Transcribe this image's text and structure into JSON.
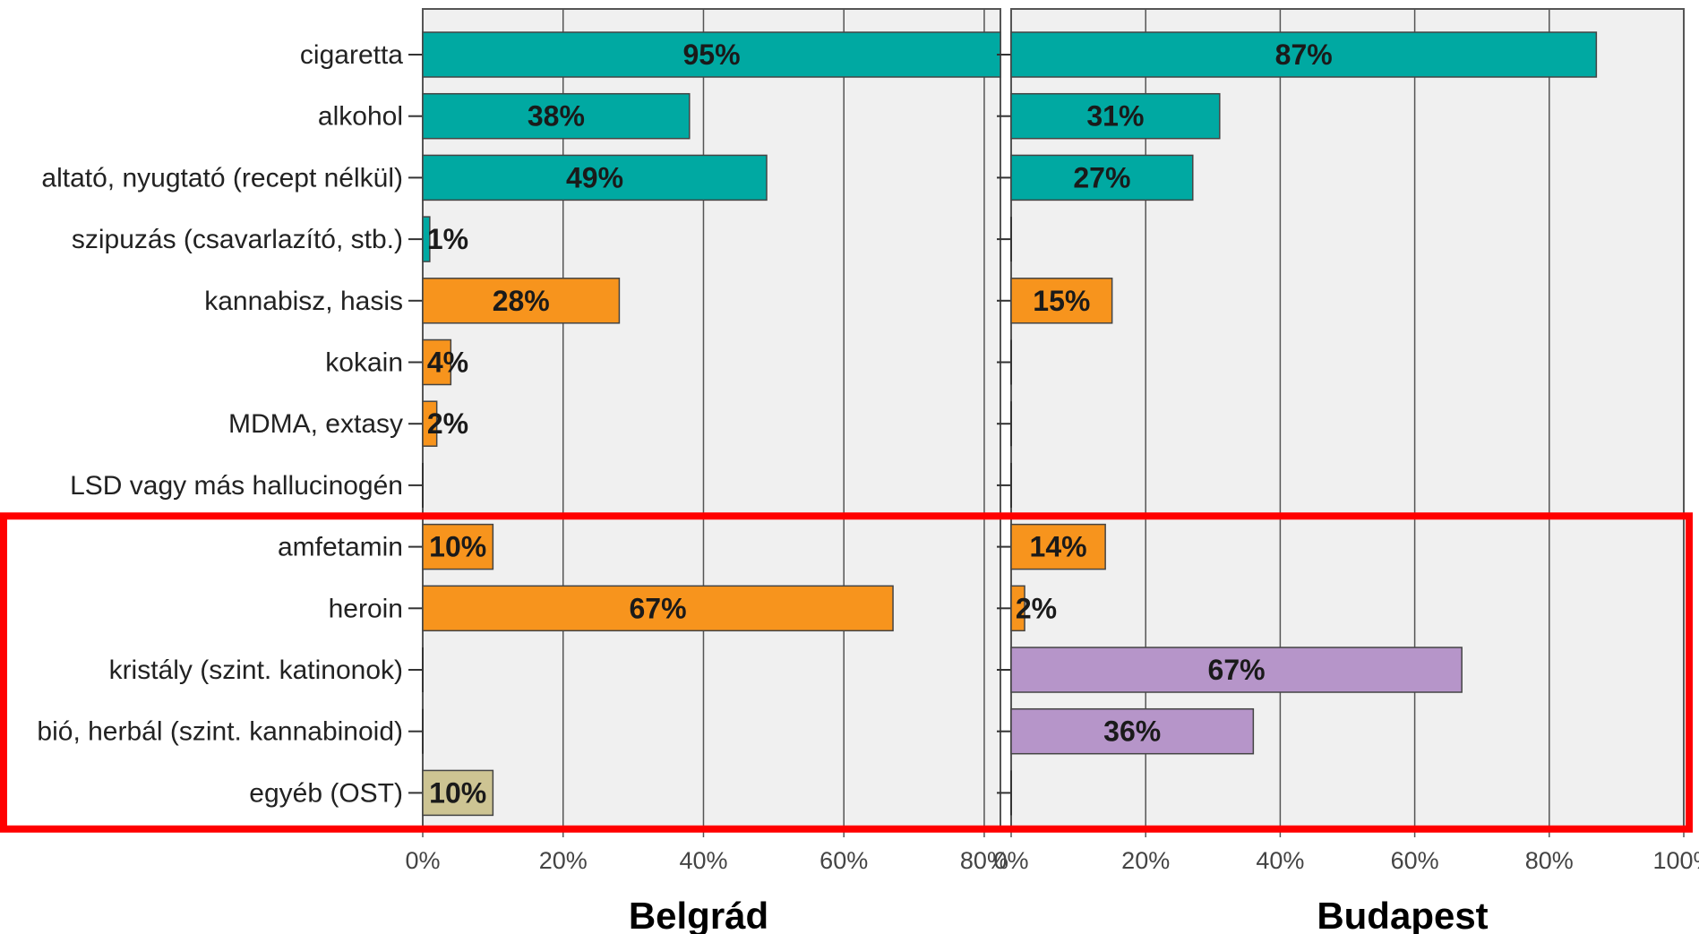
{
  "chart_data": {
    "type": "bar",
    "orientation": "horizontal",
    "categories": [
      "cigaretta",
      "alkohol",
      "altató, nyugtató (recept nélkül)",
      "szipuzás (csavarlazító, stb.)",
      "kannabisz, hasis",
      "kokain",
      "MDMA, extasy",
      "LSD vagy más hallucinogén",
      "amfetamin",
      "heroin",
      "kristály (szint. katinonok)",
      "bió, herbál (szint. kannabinoid)",
      "egyéb (OST)"
    ],
    "category_colors": [
      "#00a9a2",
      "#00a9a2",
      "#00a9a2",
      "#00a9a2",
      "#f7941d",
      "#f7941d",
      "#f7941d",
      "#f7941d",
      "#f7941d",
      "#f7941d",
      "#b695c9",
      "#b695c9",
      "#cdc493"
    ],
    "xlim": [
      0,
      100
    ],
    "x_ticks": [
      "0%",
      "20%",
      "40%",
      "60%",
      "80%",
      "100%"
    ],
    "grid": true,
    "panels": [
      {
        "title": "Belgrád",
        "values": [
          95,
          38,
          49,
          1,
          28,
          4,
          2,
          0,
          10,
          67,
          0,
          0,
          10
        ],
        "labels": [
          "95%",
          "38%",
          "49%",
          "1%",
          "28%",
          "4%",
          "2%",
          "",
          "10%",
          "67%",
          "",
          "",
          "10%"
        ]
      },
      {
        "title": "Budapest",
        "values": [
          87,
          31,
          27,
          0,
          15,
          0,
          0,
          0,
          14,
          2,
          67,
          36,
          0
        ],
        "labels": [
          "87%",
          "31%",
          "27%",
          "",
          "15%",
          "",
          "",
          "",
          "14%",
          "2%",
          "67%",
          "36%",
          ""
        ]
      }
    ],
    "highlight": {
      "first_category": "amfetamin",
      "last_category": "egyéb (OST)",
      "color": "#ff0000"
    }
  }
}
